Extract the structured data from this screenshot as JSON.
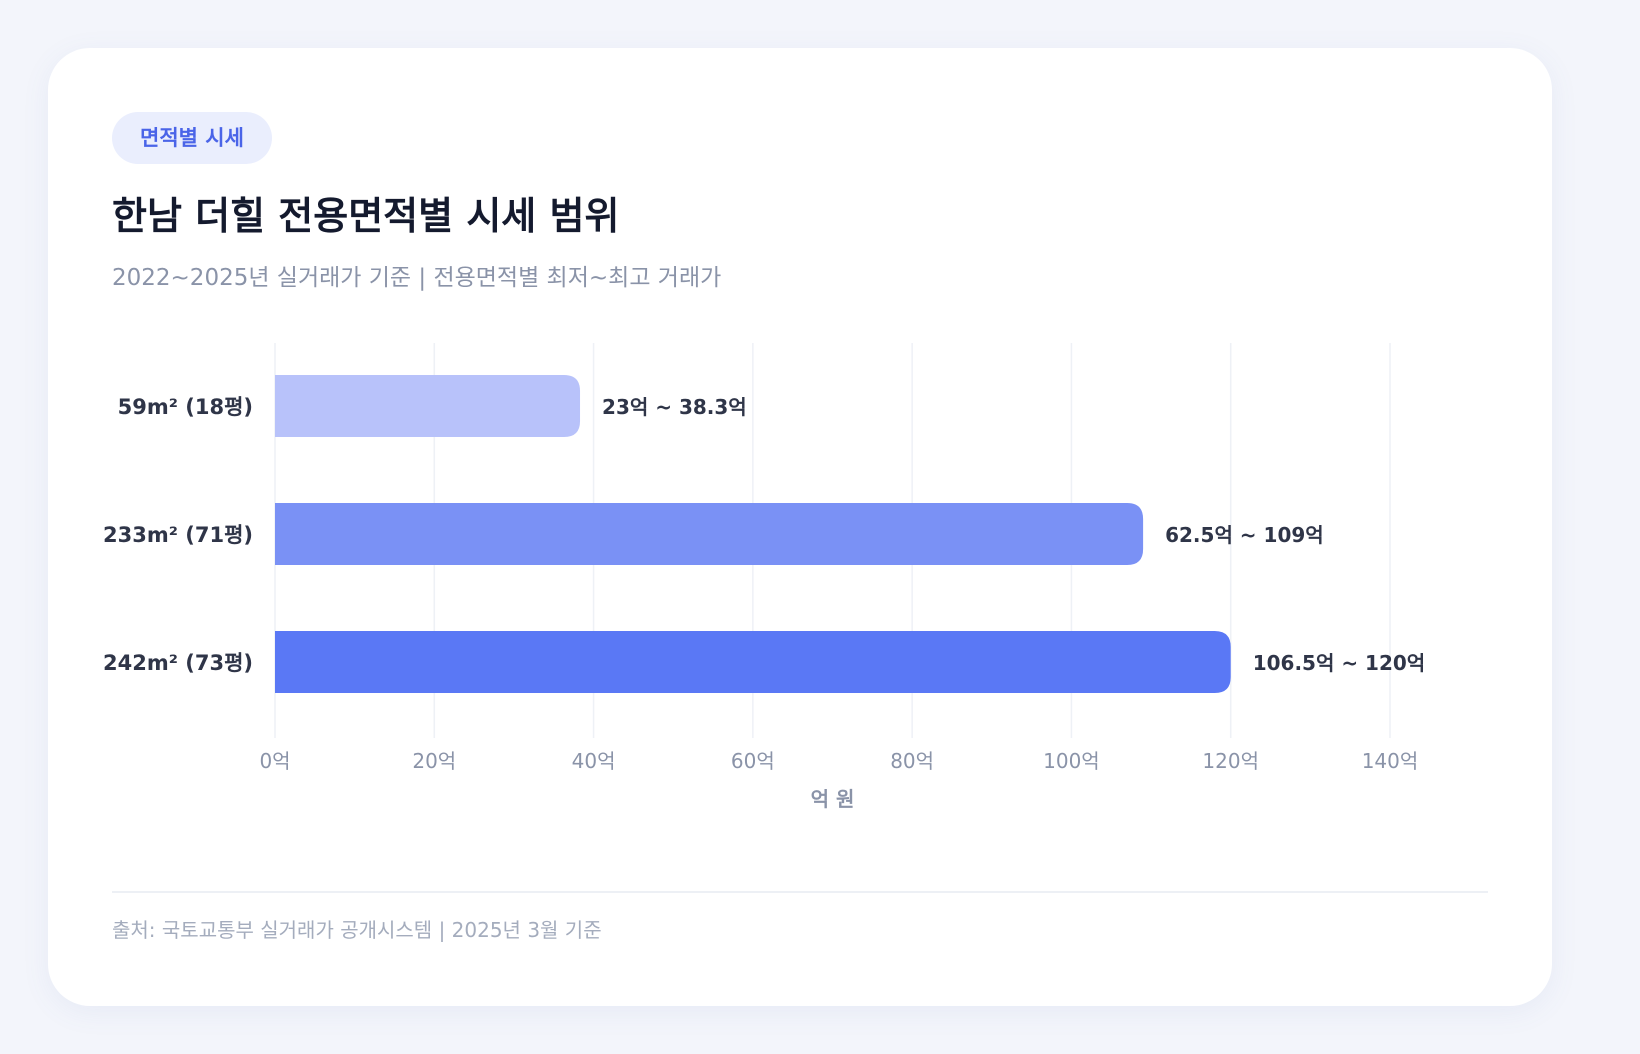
{
  "badge": "면적별 시세",
  "title": "한남 더힐 전용면적별 시세 범위",
  "subtitle": "2022~2025년 실거래가 기준 | 전용면적별 최저~최고 거래가",
  "source": "출처: 국토교통부 실거래가 공개시스템 | 2025년 3월 기준",
  "colors": {
    "badge_text": "#4a64e8",
    "grid": "#eef1f6",
    "tick_text": "#8a93a8",
    "category_text": "#2f3548",
    "value_text": "#2f3548"
  },
  "chart_data": {
    "type": "bar",
    "orientation": "horizontal",
    "categories": [
      "59m² (18평)",
      "233m² (71평)",
      "242m² (73평)"
    ],
    "ranges": [
      {
        "min": 23,
        "max": 38.3,
        "label": "23억 ~ 38.3억",
        "color": "#b8c2fa"
      },
      {
        "min": 62.5,
        "max": 109,
        "label": "62.5억 ~ 109억",
        "color": "#7a91f5"
      },
      {
        "min": 106.5,
        "max": 120,
        "label": "106.5억 ~ 120억",
        "color": "#5a78f5"
      }
    ],
    "values": [
      38.3,
      109,
      120
    ],
    "xlim": [
      0,
      140
    ],
    "xticks": [
      0,
      20,
      40,
      60,
      80,
      100,
      120,
      140
    ],
    "xtick_labels": [
      "0억",
      "20억",
      "40억",
      "60억",
      "80억",
      "100억",
      "120억",
      "140억"
    ],
    "xlabel": "억 원",
    "ylabel": "",
    "grid": true,
    "legend": "none"
  }
}
